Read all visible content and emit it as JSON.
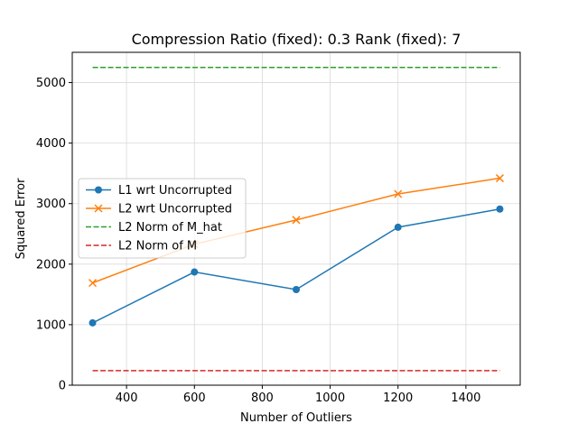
{
  "chart_data": {
    "type": "line",
    "title": "Compression Ratio (fixed): 0.3 Rank (fixed): 7",
    "xlabel": "Number of Outliers",
    "ylabel": "Squared Error",
    "xlim": [
      240,
      1560
    ],
    "ylim": [
      0,
      5500
    ],
    "xticks": [
      400,
      600,
      800,
      1000,
      1200,
      1400
    ],
    "yticks": [
      0,
      1000,
      2000,
      3000,
      4000,
      5000
    ],
    "grid": true,
    "legend_position": "center-left",
    "series": [
      {
        "name": "L1 wrt Uncorrupted",
        "color": "#1f77b4",
        "marker": "circle",
        "style": "solid",
        "x": [
          300,
          600,
          900,
          1200,
          1500
        ],
        "y": [
          1030,
          1870,
          1580,
          2610,
          2910
        ]
      },
      {
        "name": "L2 wrt Uncorrupted",
        "color": "#ff7f0e",
        "marker": "x",
        "style": "solid",
        "x": [
          300,
          600,
          900,
          1200,
          1500
        ],
        "y": [
          1690,
          2330,
          2730,
          3160,
          3420
        ]
      },
      {
        "name": "L2 Norm of M_hat",
        "color": "#2ca02c",
        "marker": "none",
        "style": "dashed",
        "x": [
          300,
          1500
        ],
        "y": [
          5250,
          5250
        ]
      },
      {
        "name": "L2 Norm of M",
        "color": "#d62728",
        "marker": "none",
        "style": "dashed",
        "x": [
          300,
          1500
        ],
        "y": [
          240,
          240
        ]
      }
    ]
  }
}
